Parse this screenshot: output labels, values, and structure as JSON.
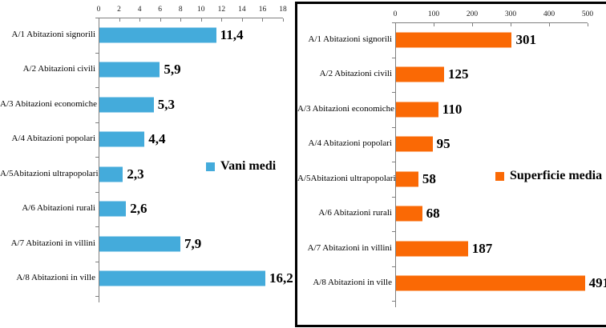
{
  "page": {
    "background": "#ffffff",
    "right_panel_frame_color": "#000000"
  },
  "chart_data": [
    {
      "type": "bar",
      "orientation": "horizontal",
      "legend": "Vani medi",
      "legend_position": "middle-right",
      "categories": [
        "A/1 Abitazioni signorili",
        "A/2 Abitazioni civili",
        "A/3 Abitazioni economiche",
        "A/4 Abitazioni popolari",
        "A/5Abitazioni ultrapopolari",
        "A/6 Abitazioni rurali",
        "A/7 Abitazioni in villini",
        "A/8 Abitazioni in ville"
      ],
      "values": [
        11.4,
        5.9,
        5.3,
        4.4,
        2.3,
        2.6,
        7.9,
        16.2
      ],
      "value_labels": [
        "11,4",
        "5,9",
        "5,3",
        "4,4",
        "2,3",
        "2,6",
        "7,9",
        "16,2"
      ],
      "xlim": [
        0,
        18
      ],
      "xticks": [
        0,
        2,
        4,
        6,
        8,
        10,
        12,
        14,
        16,
        18
      ],
      "axis_position": "top",
      "grid": false,
      "bar_color": "#44ABDB",
      "axis_color": "#7f7f7f",
      "framed": false
    },
    {
      "type": "bar",
      "orientation": "horizontal",
      "legend": "Superficie media",
      "legend_position": "middle-right",
      "categories": [
        "A/1 Abitazioni signorili",
        "A/2 Abitazioni civili",
        "A/3 Abitazioni economiche",
        "A/4 Abitazioni popolari",
        "A/5Abitazioni ultrapopolari",
        "A/6 Abitazioni rurali",
        "A/7 Abitazioni in villini",
        "A/8 Abitazioni in ville"
      ],
      "values": [
        301,
        125,
        110,
        95,
        58,
        68,
        187,
        491
      ],
      "value_labels": [
        "301",
        "125",
        "110",
        "95",
        "58",
        "68",
        "187",
        "491"
      ],
      "xlim": [
        0,
        500
      ],
      "xticks": [
        0,
        100,
        200,
        300,
        400,
        500
      ],
      "axis_position": "top",
      "grid": false,
      "bar_color": "#FA6905",
      "axis_color": "#7f7f7f",
      "framed": true
    }
  ]
}
